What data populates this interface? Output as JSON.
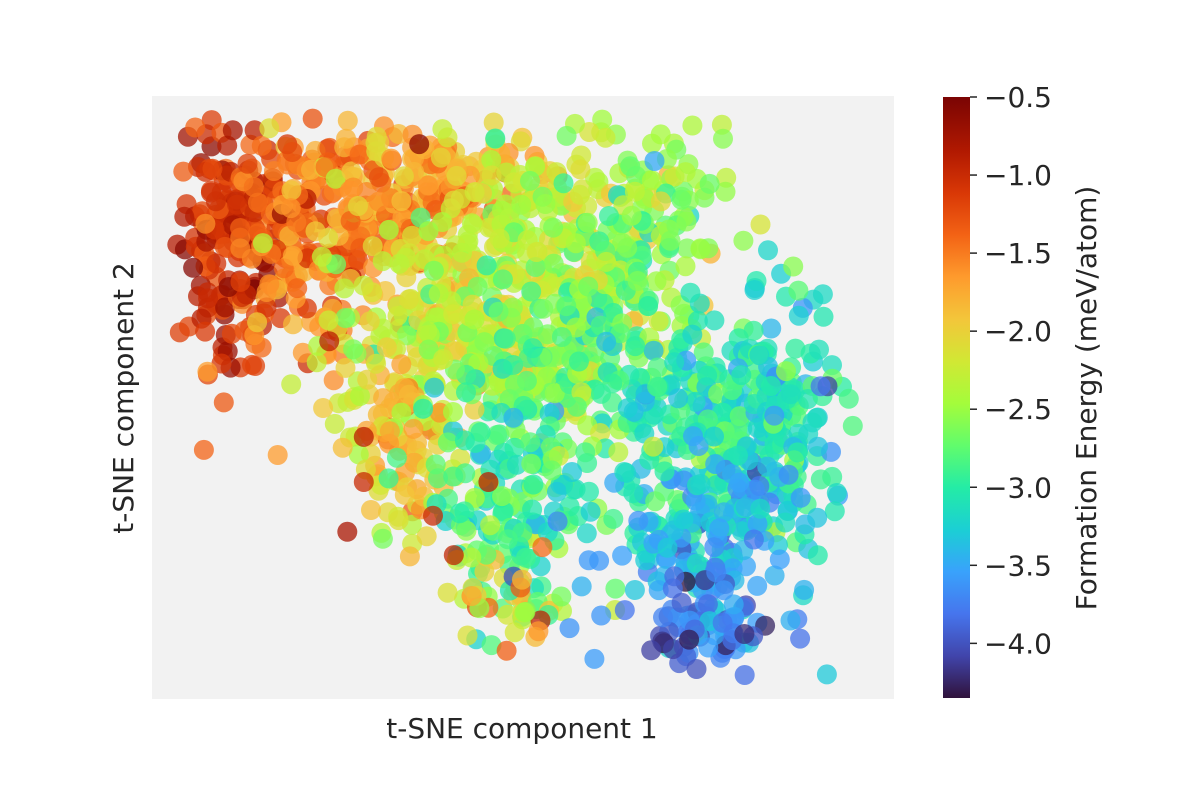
{
  "chart_data": {
    "type": "scatter",
    "title": "",
    "xlabel": "t-SNE component 1",
    "ylabel": "t-SNE component 2",
    "x_ticks_shown": false,
    "y_ticks_shown": false,
    "grid": false,
    "plot_background": "#f2f2f2",
    "marker_alpha": 0.75,
    "colormap": "turbo",
    "colorbar": {
      "label": "Formation Energy (meV/atom)",
      "range": [
        -4.35,
        -0.5
      ],
      "ticks": [
        -0.5,
        -1.0,
        -1.5,
        -2.0,
        -2.5,
        -3.0,
        -3.5,
        -4.0
      ],
      "tick_labels": [
        "−0.5",
        "−1.0",
        "−1.5",
        "−2.0",
        "−2.5",
        "−3.0",
        "−3.5",
        "−4.0"
      ]
    },
    "xlim": [
      0,
      100
    ],
    "ylim": [
      0,
      100
    ],
    "clusters": [
      {
        "region": "upper-left dense block",
        "cx": 8,
        "cy": 78,
        "sx": 4,
        "sy": 11,
        "n": 180,
        "value_mean": -1.0,
        "value_sd": 0.25
      },
      {
        "region": "upper-left block edge",
        "cx": 18,
        "cy": 80,
        "sx": 6,
        "sy": 10,
        "n": 200,
        "value_mean": -1.45,
        "value_sd": 0.25
      },
      {
        "region": "upper bridge",
        "cx": 32,
        "cy": 84,
        "sx": 8,
        "sy": 6,
        "n": 170,
        "value_mean": -1.7,
        "value_sd": 0.25
      },
      {
        "region": "upper top strip",
        "cx": 40,
        "cy": 92,
        "sx": 7,
        "sy": 3,
        "n": 60,
        "value_mean": -1.75,
        "value_sd": 0.3
      },
      {
        "region": "upper centre",
        "cx": 50,
        "cy": 76,
        "sx": 10,
        "sy": 9,
        "n": 240,
        "value_mean": -2.25,
        "value_sd": 0.2
      },
      {
        "region": "upper right",
        "cx": 66,
        "cy": 80,
        "sx": 7,
        "sy": 11,
        "n": 160,
        "value_mean": -2.55,
        "value_sd": 0.25
      },
      {
        "region": "centre band",
        "cx": 42,
        "cy": 60,
        "sx": 10,
        "sy": 7,
        "n": 220,
        "value_mean": -2.25,
        "value_sd": 0.25
      },
      {
        "region": "middle",
        "cx": 56,
        "cy": 56,
        "sx": 8,
        "sy": 8,
        "n": 170,
        "value_mean": -2.7,
        "value_sd": 0.3
      },
      {
        "region": "left lower lobe",
        "cx": 33,
        "cy": 42,
        "sx": 4,
        "sy": 8,
        "n": 110,
        "value_mean": -2.05,
        "value_sd": 0.35
      },
      {
        "region": "lower centre",
        "cx": 49,
        "cy": 33,
        "sx": 6,
        "sy": 10,
        "n": 150,
        "value_mean": -2.9,
        "value_sd": 0.3
      },
      {
        "region": "lower left tail",
        "cx": 47,
        "cy": 15,
        "sx": 4,
        "sy": 5,
        "n": 55,
        "value_mean": -2.2,
        "value_sd": 0.6
      },
      {
        "region": "right middle",
        "cx": 77,
        "cy": 45,
        "sx": 8,
        "sy": 9,
        "n": 220,
        "value_mean": -3.05,
        "value_sd": 0.25
      },
      {
        "region": "right edge",
        "cx": 88,
        "cy": 45,
        "sx": 4,
        "sy": 12,
        "n": 120,
        "value_mean": -3.1,
        "value_sd": 0.25
      },
      {
        "region": "right lower",
        "cx": 76,
        "cy": 25,
        "sx": 7,
        "sy": 8,
        "n": 160,
        "value_mean": -3.4,
        "value_sd": 0.25
      },
      {
        "region": "bottom right",
        "cx": 77,
        "cy": 8,
        "sx": 5,
        "sy": 4,
        "n": 70,
        "value_mean": -3.8,
        "value_sd": 0.25
      }
    ],
    "notable_points": [
      {
        "x": 35,
        "y": 95,
        "value": -0.6
      },
      {
        "x": 46,
        "y": 96,
        "value": -3.0
      },
      {
        "x": 94,
        "y": 52,
        "value": -4.1
      },
      {
        "x": 93,
        "y": 52,
        "value": -3.8
      },
      {
        "x": 61,
        "y": 21,
        "value": -3.6
      },
      {
        "x": 55,
        "y": 28,
        "value": -3.7
      },
      {
        "x": 27,
        "y": 35,
        "value": -1.0
      },
      {
        "x": 27,
        "y": 43,
        "value": -0.9
      },
      {
        "x": 40,
        "y": 22,
        "value": -0.95
      },
      {
        "x": 22,
        "y": 60,
        "value": -0.9
      },
      {
        "x": 74,
        "y": 7,
        "value": -4.3
      },
      {
        "x": 82,
        "y": 8,
        "value": -4.2
      },
      {
        "x": 37,
        "y": 29,
        "value": -1.0
      },
      {
        "x": 45,
        "y": 35,
        "value": -0.9
      },
      {
        "x": 69,
        "y": 92,
        "value": -3.5
      }
    ]
  }
}
